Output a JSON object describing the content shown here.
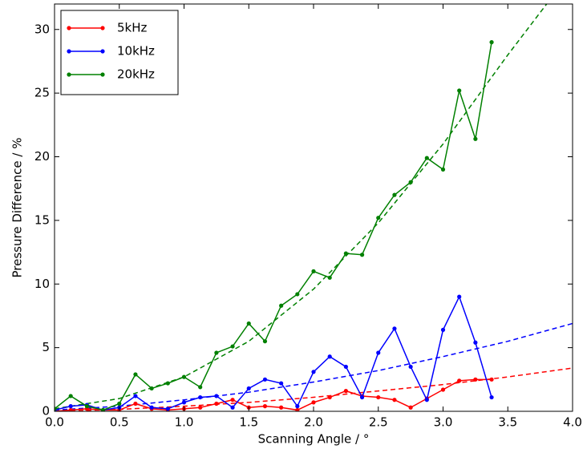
{
  "chart_data": {
    "type": "line",
    "xlabel": "Scanning Angle / °",
    "ylabel": "Pressure Difference / %",
    "x": [
      0,
      0.125,
      0.25,
      0.375,
      0.5,
      0.625,
      0.75,
      0.875,
      1.0,
      1.125,
      1.25,
      1.375,
      1.5,
      1.625,
      1.75,
      1.875,
      2.0,
      2.125,
      2.25,
      2.375,
      2.5,
      2.625,
      2.75,
      2.875,
      3.0,
      3.125,
      3.25,
      3.375
    ],
    "series": [
      {
        "name": "5kHz",
        "color": "#ff0000",
        "values": [
          0.0,
          0.1,
          0.2,
          0.1,
          0.1,
          0.6,
          0.2,
          0.1,
          0.2,
          0.3,
          0.6,
          0.9,
          0.3,
          0.4,
          0.3,
          0.1,
          0.7,
          1.1,
          1.6,
          1.2,
          1.1,
          0.9,
          0.3,
          1.0,
          1.7,
          2.4,
          2.5,
          2.5
        ]
      },
      {
        "name": "10kHz",
        "color": "#0000ff",
        "values": [
          0.1,
          0.4,
          0.5,
          0.1,
          0.3,
          1.2,
          0.3,
          0.2,
          0.7,
          1.1,
          1.2,
          0.3,
          1.8,
          2.5,
          2.2,
          0.4,
          3.1,
          4.3,
          3.5,
          1.1,
          4.6,
          6.5,
          3.5,
          0.9,
          6.4,
          9.0,
          5.4,
          1.1
        ]
      },
      {
        "name": "20kHz",
        "color": "#008000",
        "values": [
          0.2,
          1.2,
          0.4,
          0.1,
          0.6,
          2.9,
          1.8,
          2.2,
          2.7,
          1.9,
          4.6,
          5.1,
          6.9,
          5.5,
          8.3,
          9.2,
          11.0,
          10.5,
          12.4,
          12.3,
          15.2,
          17.0,
          18.0,
          19.9,
          19.0,
          25.2,
          21.4,
          29.0
        ]
      }
    ],
    "fits": [
      {
        "color": "#ff0000",
        "x": [
          0,
          0.5,
          1.0,
          1.5,
          2.0,
          2.5,
          3.0,
          3.5,
          4.0
        ],
        "values": [
          0.0,
          0.15,
          0.4,
          0.7,
          1.1,
          1.6,
          2.1,
          2.7,
          3.4
        ]
      },
      {
        "color": "#0000ff",
        "x": [
          0,
          0.5,
          1.0,
          1.5,
          2.0,
          2.5,
          3.0,
          3.5,
          4.0
        ],
        "values": [
          0.1,
          0.4,
          0.9,
          1.5,
          2.3,
          3.2,
          4.3,
          5.5,
          6.9
        ]
      },
      {
        "color": "#008000",
        "x": [
          0,
          0.5,
          1.0,
          1.5,
          2.0,
          2.5,
          3.0,
          3.5,
          3.8
        ],
        "values": [
          0.2,
          1.0,
          2.7,
          5.5,
          9.6,
          14.8,
          21.0,
          28.0,
          32.0
        ]
      }
    ],
    "xlim": [
      0,
      4.0
    ],
    "ylim": [
      0,
      32
    ],
    "xticks": [
      {
        "value": 0,
        "label": "0.0"
      },
      {
        "value": 0.5,
        "label": "0.5"
      },
      {
        "value": 1.0,
        "label": "1.0"
      },
      {
        "value": 1.5,
        "label": "1.5"
      },
      {
        "value": 2.0,
        "label": "2.0"
      },
      {
        "value": 2.5,
        "label": "2.5"
      },
      {
        "value": 3.0,
        "label": "3.0"
      },
      {
        "value": 3.5,
        "label": "3.5"
      },
      {
        "value": 4.0,
        "label": "4.0"
      }
    ],
    "yticks": [
      0,
      5,
      10,
      15,
      20,
      25,
      30
    ],
    "legend": "upper left"
  }
}
